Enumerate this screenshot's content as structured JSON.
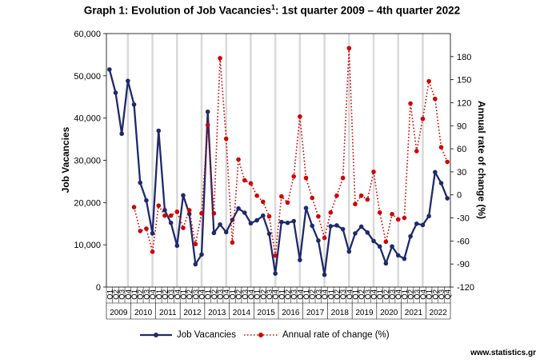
{
  "title": {
    "main": "Graph 1: Evolution of Job Vacancies",
    "superscript": "1",
    "suffix": ": 1st quarter 2009 – 4th quarter 2022"
  },
  "source": "www.statistics.gr",
  "colors": {
    "vacancies": "#1f2a6b",
    "rate": "#d10000",
    "grid": "#d9d9d9"
  },
  "chart_data": {
    "type": "line",
    "title": "Graph 1: Evolution of Job Vacancies1: 1st quarter 2009 – 4th quarter 2022",
    "ylabel": "Job Vacancies",
    "y2label": "Annual rate of change  (%)",
    "ylim": [
      0,
      60000
    ],
    "yticks": [
      "0",
      "10,000",
      "20,000",
      "30,000",
      "40,000",
      "50,000",
      "60,000"
    ],
    "y2lim": [
      -120,
      210
    ],
    "y2ticks": [
      "-120",
      "-90",
      "-60",
      "-30",
      "0",
      "30",
      "60",
      "90",
      "120",
      "150",
      "180"
    ],
    "quarters": [
      "Q1",
      "Q2",
      "Q3",
      "Q4"
    ],
    "years": [
      "2009",
      "2010",
      "2011",
      "2012",
      "2013",
      "2014",
      "2015",
      "2016",
      "2017",
      "2018",
      "2019",
      "2020",
      "2021",
      "2022"
    ],
    "series": [
      {
        "name": "Job Vacancies",
        "axis": "left",
        "style": "solid",
        "values": [
          51500,
          46000,
          36300,
          48800,
          43200,
          24700,
          20500,
          12700,
          37000,
          18200,
          15200,
          9800,
          21700,
          17300,
          5400,
          7700,
          41500,
          12800,
          14800,
          13000,
          15900,
          18600,
          17600,
          15100,
          15800,
          16900,
          12600,
          3200,
          15400,
          15200,
          15600,
          6400,
          18700,
          14500,
          11000,
          2900,
          14400,
          14600,
          13700,
          8400,
          12700,
          14300,
          12900,
          10900,
          9600,
          5600,
          9600,
          7500,
          6700,
          12000,
          15000,
          14700,
          16800,
          27200,
          24600,
          21000
        ]
      },
      {
        "name": "Annual rate of change  (%)",
        "axis": "right",
        "style": "dotted",
        "values": [
          null,
          null,
          null,
          null,
          -16,
          -47,
          -44,
          -74,
          -14,
          -27,
          -27,
          -22,
          -43,
          -20,
          -64,
          -24,
          91,
          -24,
          178,
          73,
          -62,
          46,
          19,
          15,
          -1,
          -9,
          -28,
          -79,
          -2,
          -10,
          24,
          102,
          22,
          -4,
          -28,
          -56,
          -23,
          -1,
          22,
          191,
          -12,
          -1,
          -6,
          30,
          -23,
          -61,
          -25,
          -32,
          -30,
          119,
          57,
          99,
          148,
          125,
          62,
          43
        ]
      }
    ],
    "legend_position": "bottom",
    "grid": "vertical dividers at Q4 of each year"
  }
}
